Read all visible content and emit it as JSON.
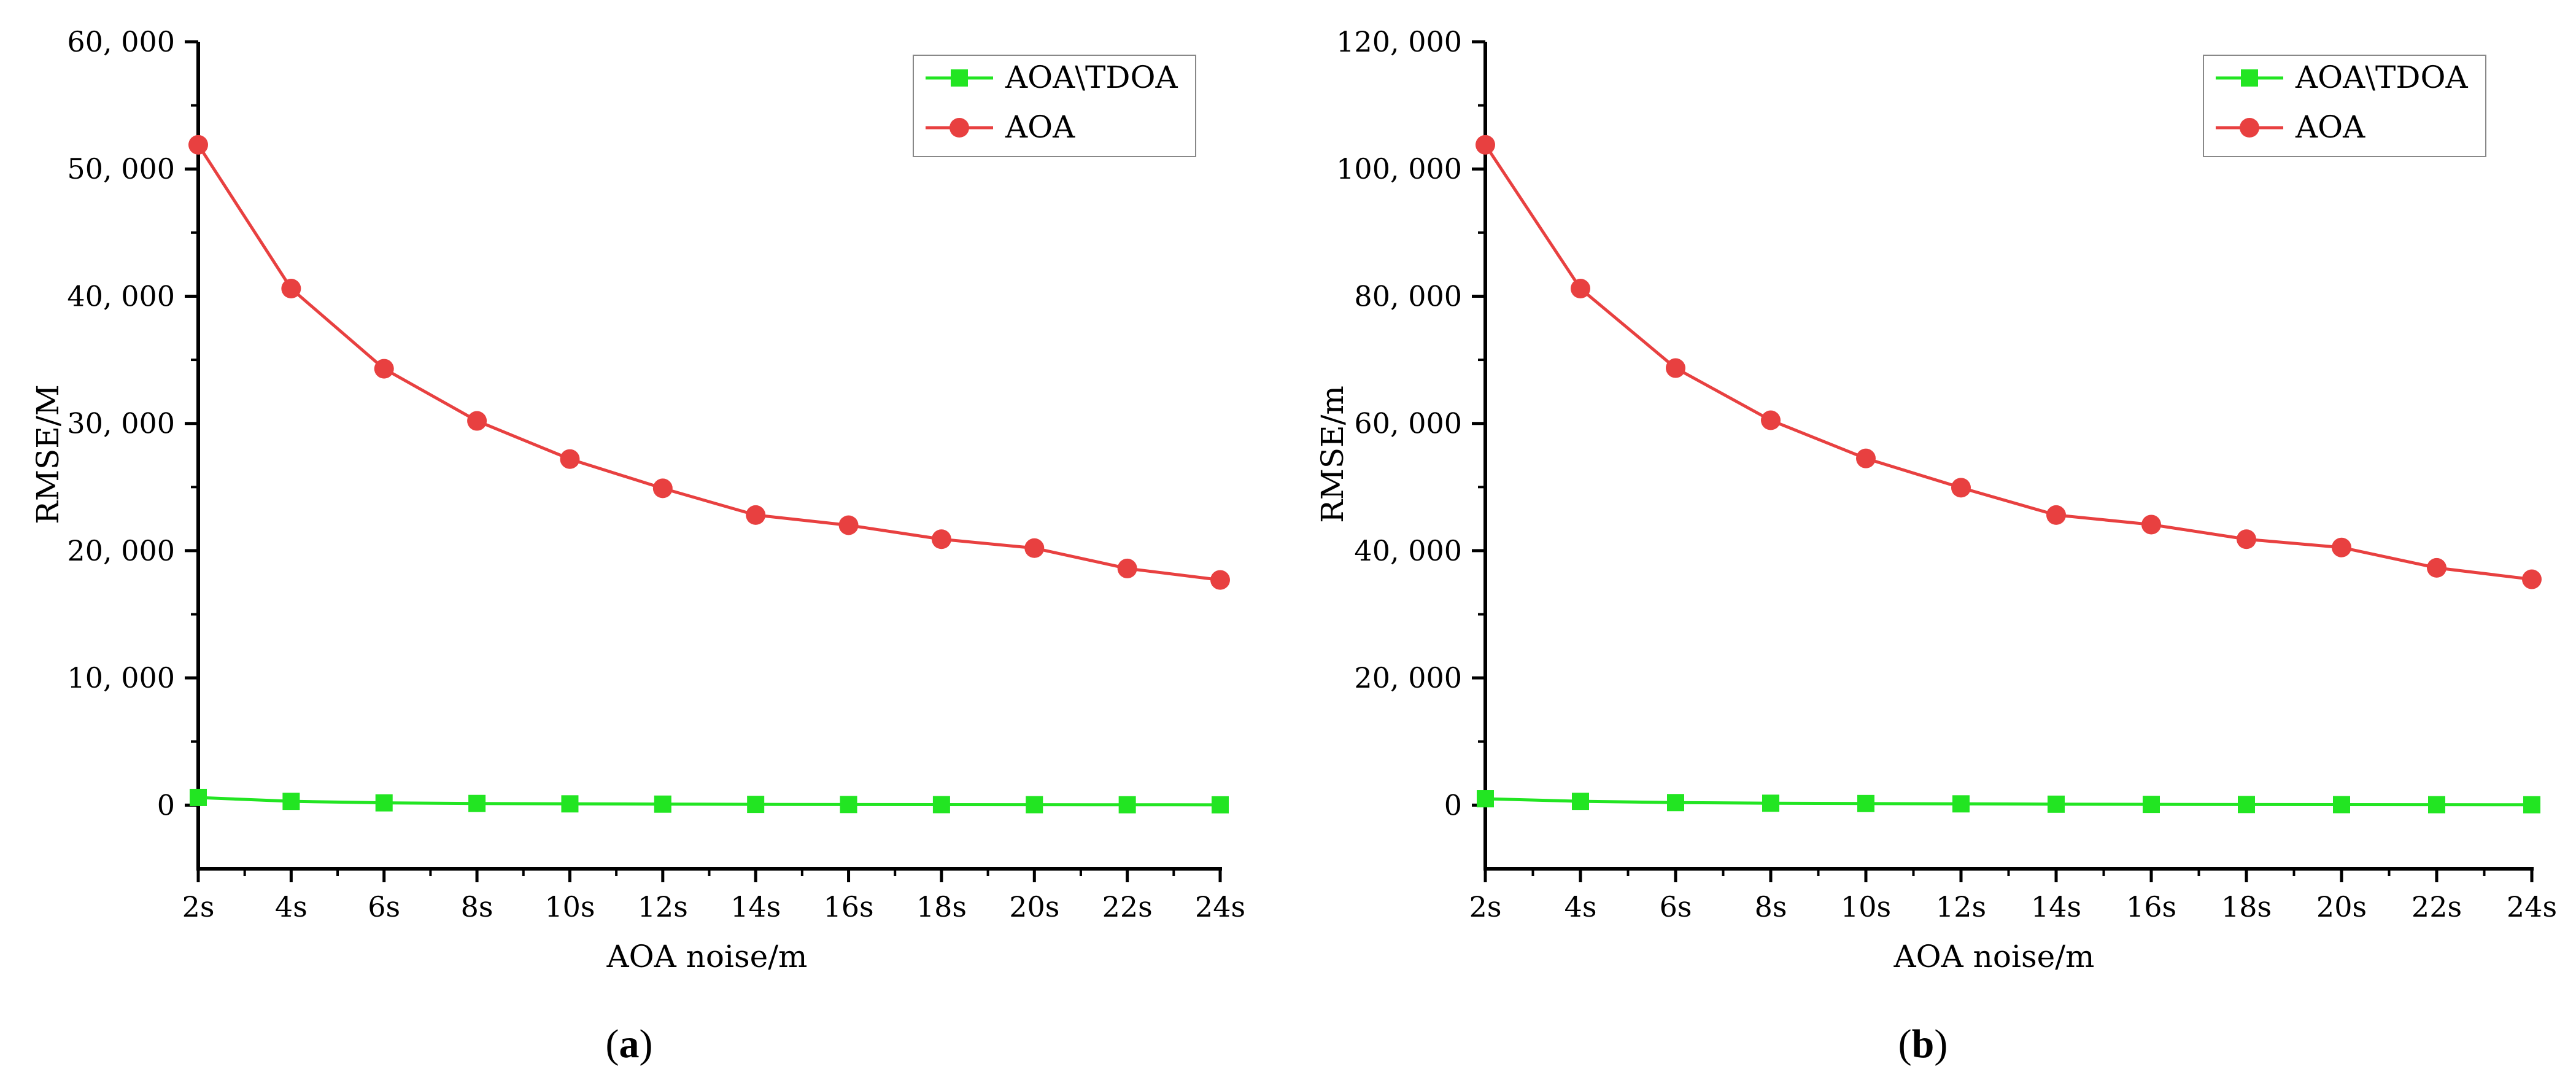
{
  "figure": {
    "captions": [
      "(a)",
      "(b)"
    ]
  },
  "chart_data": [
    {
      "type": "line",
      "panel": "a",
      "caption_letter": "a",
      "xlabel": "AOA noise/m",
      "ylabel": "RMSE/M",
      "categories": [
        "2s",
        "4s",
        "6s",
        "8s",
        "10s",
        "12s",
        "14s",
        "16s",
        "18s",
        "20s",
        "22s",
        "24s"
      ],
      "ylim": [
        -5000,
        60000
      ],
      "yticks": [
        0,
        10000,
        20000,
        30000,
        40000,
        50000,
        60000
      ],
      "ytick_labels": [
        "0",
        "10, 000",
        "20, 000",
        "30, 000",
        "40, 000",
        "50, 000",
        "60, 000"
      ],
      "legend_position": "top-right",
      "series": [
        {
          "name": "AOA\\TDOA",
          "color": "#22e522",
          "marker": "square",
          "values": [
            600,
            300,
            180,
            130,
            100,
            80,
            60,
            50,
            40,
            35,
            30,
            25
          ]
        },
        {
          "name": "AOA",
          "color": "#e84040",
          "marker": "circle",
          "values": [
            51900,
            40600,
            34300,
            30200,
            27200,
            24900,
            22800,
            22000,
            20900,
            20200,
            18600,
            17700
          ]
        }
      ]
    },
    {
      "type": "line",
      "panel": "b",
      "caption_letter": "b",
      "xlabel": "AOA noise/m",
      "ylabel": "RMSE/m",
      "categories": [
        "2s",
        "4s",
        "6s",
        "8s",
        "10s",
        "12s",
        "14s",
        "16s",
        "18s",
        "20s",
        "22s",
        "24s"
      ],
      "ylim": [
        -10000,
        120000
      ],
      "yticks": [
        0,
        20000,
        40000,
        60000,
        80000,
        100000,
        120000
      ],
      "ytick_labels": [
        "0",
        "20, 000",
        "40, 000",
        "60, 000",
        "80, 000",
        "100, 000",
        "120, 000"
      ],
      "legend_position": "top-right",
      "series": [
        {
          "name": "AOA\\TDOA",
          "color": "#22e522",
          "marker": "square",
          "values": [
            1000,
            600,
            400,
            300,
            250,
            200,
            150,
            120,
            100,
            80,
            70,
            60
          ]
        },
        {
          "name": "AOA",
          "color": "#e84040",
          "marker": "circle",
          "values": [
            103800,
            81200,
            68700,
            60500,
            54500,
            49900,
            45600,
            44100,
            41800,
            40500,
            37300,
            35500
          ]
        }
      ]
    }
  ]
}
